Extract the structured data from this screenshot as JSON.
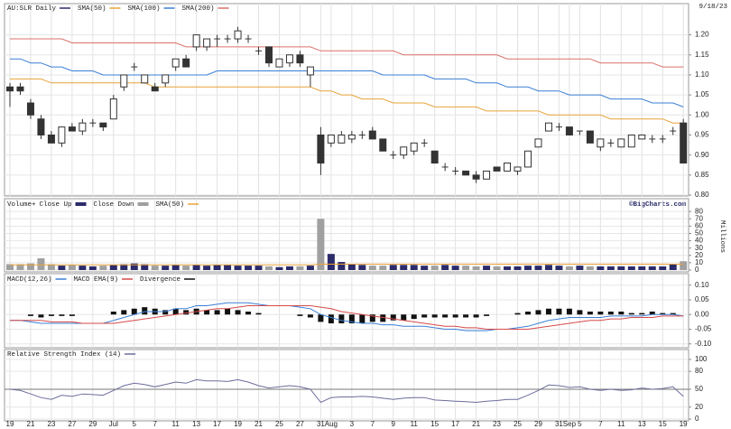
{
  "chart_data": [
    {
      "type": "candlestick",
      "title": "AU:SLR Daily",
      "date": "9/18/23",
      "color": "#2b2b6b",
      "categories": [
        "19",
        null,
        "21",
        null,
        "23",
        null,
        "27",
        null,
        "29",
        null,
        "Jul",
        null,
        "5",
        null,
        "7",
        null,
        "11",
        null,
        "13",
        null,
        "17",
        null,
        "19",
        null,
        "21",
        null,
        "25",
        null,
        "27",
        null,
        "31",
        "Aug",
        null,
        "3",
        null,
        "7",
        null,
        "9",
        null,
        "11",
        null,
        "15",
        null,
        "17",
        null,
        "21",
        null,
        "23",
        null,
        "25",
        null,
        "29",
        null,
        "31",
        "Sep",
        "5",
        null,
        "7",
        null,
        "11",
        null,
        "13",
        null,
        "15",
        null,
        "19"
      ],
      "open": [
        1.07,
        1.07,
        1.03,
        0.99,
        0.95,
        0.93,
        0.97,
        0.96,
        0.98,
        0.98,
        0.99,
        1.07,
        1.12,
        1.08,
        1.07,
        1.08,
        1.12,
        1.14,
        1.17,
        1.17,
        1.19,
        1.19,
        1.19,
        1.19,
        1.16,
        1.17,
        1.12,
        1.13,
        1.15,
        1.1,
        0.95,
        0.93,
        0.93,
        0.94,
        0.95,
        0.96,
        0.94,
        0.9,
        0.9,
        0.91,
        0.93,
        0.91,
        0.87,
        0.86,
        0.86,
        0.85,
        0.84,
        0.87,
        0.86,
        0.86,
        0.87,
        0.92,
        0.96,
        0.97,
        0.97,
        0.96,
        0.96,
        0.92,
        0.93,
        0.92,
        0.92,
        0.94,
        0.94,
        0.94,
        0.96,
        0.98
      ],
      "high": [
        1.08,
        1.08,
        1.04,
        1.0,
        0.96,
        0.97,
        0.98,
        0.99,
        0.99,
        0.98,
        1.05,
        1.1,
        1.13,
        1.1,
        1.08,
        1.1,
        1.14,
        1.15,
        1.2,
        1.19,
        1.2,
        1.2,
        1.22,
        1.2,
        1.17,
        1.17,
        1.14,
        1.15,
        1.16,
        1.12,
        0.97,
        0.95,
        0.96,
        0.96,
        0.96,
        0.97,
        0.94,
        0.91,
        0.92,
        0.93,
        0.94,
        0.91,
        0.88,
        0.87,
        0.86,
        0.86,
        0.86,
        0.87,
        0.88,
        0.87,
        0.91,
        0.94,
        0.98,
        0.98,
        0.97,
        0.96,
        0.96,
        0.94,
        0.94,
        0.94,
        0.95,
        0.95,
        0.95,
        0.95,
        0.97,
        0.99
      ],
      "low": [
        1.02,
        1.05,
        0.99,
        0.94,
        0.93,
        0.92,
        0.96,
        0.95,
        0.97,
        0.96,
        0.99,
        1.06,
        1.11,
        1.08,
        1.06,
        1.07,
        1.11,
        1.12,
        1.16,
        1.16,
        1.17,
        1.18,
        1.18,
        1.18,
        1.15,
        1.12,
        1.12,
        1.12,
        1.12,
        1.07,
        0.85,
        0.92,
        0.93,
        0.93,
        0.94,
        0.94,
        0.91,
        0.89,
        0.89,
        0.9,
        0.92,
        0.88,
        0.86,
        0.85,
        0.85,
        0.83,
        0.84,
        0.86,
        0.86,
        0.85,
        0.87,
        0.92,
        0.96,
        0.96,
        0.95,
        0.95,
        0.93,
        0.91,
        0.92,
        0.92,
        0.92,
        0.94,
        0.93,
        0.93,
        0.95,
        0.88
      ],
      "close": [
        1.06,
        1.06,
        1.0,
        0.95,
        0.93,
        0.97,
        0.96,
        0.98,
        0.98,
        0.97,
        1.04,
        1.1,
        1.12,
        1.1,
        1.06,
        1.1,
        1.14,
        1.12,
        1.2,
        1.19,
        1.19,
        1.19,
        1.21,
        1.19,
        1.16,
        1.13,
        1.14,
        1.15,
        1.13,
        1.12,
        0.88,
        0.95,
        0.95,
        0.95,
        0.95,
        0.94,
        0.91,
        0.9,
        0.92,
        0.93,
        0.93,
        0.88,
        0.87,
        0.86,
        0.85,
        0.84,
        0.86,
        0.86,
        0.88,
        0.87,
        0.91,
        0.94,
        0.98,
        0.97,
        0.95,
        0.96,
        0.93,
        0.94,
        0.93,
        0.94,
        0.95,
        0.95,
        0.94,
        0.94,
        0.96,
        0.88
      ],
      "series": [
        {
          "name": "SMA(50)",
          "color": "#e8a33a",
          "values": [
            1.09,
            1.09,
            1.09,
            1.09,
            1.08,
            1.08,
            1.08,
            1.08,
            1.08,
            1.08,
            1.08,
            1.08,
            1.08,
            1.08,
            1.07,
            1.07,
            1.07,
            1.07,
            1.07,
            1.07,
            1.07,
            1.07,
            1.07,
            1.07,
            1.07,
            1.07,
            1.07,
            1.07,
            1.07,
            1.07,
            1.06,
            1.06,
            1.05,
            1.05,
            1.04,
            1.04,
            1.04,
            1.03,
            1.03,
            1.03,
            1.03,
            1.02,
            1.02,
            1.02,
            1.02,
            1.02,
            1.01,
            1.01,
            1.01,
            1.01,
            1.01,
            1.01,
            1.0,
            1.0,
            1.0,
            1.0,
            1.0,
            1.0,
            0.99,
            0.99,
            0.99,
            0.99,
            0.99,
            0.99,
            0.98,
            0.98
          ]
        },
        {
          "name": "SMA(100)",
          "color": "#3a7fd5",
          "values": [
            1.14,
            1.14,
            1.13,
            1.13,
            1.12,
            1.12,
            1.11,
            1.11,
            1.11,
            1.1,
            1.1,
            1.1,
            1.1,
            1.1,
            1.1,
            1.1,
            1.1,
            1.1,
            1.1,
            1.1,
            1.11,
            1.11,
            1.11,
            1.11,
            1.11,
            1.11,
            1.11,
            1.11,
            1.11,
            1.11,
            1.11,
            1.11,
            1.11,
            1.11,
            1.11,
            1.11,
            1.1,
            1.1,
            1.1,
            1.1,
            1.1,
            1.09,
            1.09,
            1.09,
            1.09,
            1.08,
            1.08,
            1.08,
            1.07,
            1.07,
            1.07,
            1.06,
            1.06,
            1.06,
            1.05,
            1.05,
            1.05,
            1.05,
            1.04,
            1.04,
            1.04,
            1.04,
            1.03,
            1.03,
            1.03,
            1.02
          ]
        },
        {
          "name": "SMA(200)",
          "color": "#d9706a",
          "values": [
            1.19,
            1.19,
            1.19,
            1.19,
            1.19,
            1.19,
            1.18,
            1.18,
            1.18,
            1.18,
            1.18,
            1.18,
            1.18,
            1.18,
            1.18,
            1.18,
            1.18,
            1.17,
            1.17,
            1.17,
            1.17,
            1.17,
            1.17,
            1.17,
            1.17,
            1.17,
            1.17,
            1.17,
            1.17,
            1.17,
            1.16,
            1.16,
            1.16,
            1.16,
            1.16,
            1.16,
            1.16,
            1.16,
            1.15,
            1.15,
            1.15,
            1.15,
            1.15,
            1.15,
            1.15,
            1.15,
            1.15,
            1.15,
            1.14,
            1.14,
            1.14,
            1.14,
            1.14,
            1.14,
            1.14,
            1.14,
            1.14,
            1.13,
            1.13,
            1.13,
            1.13,
            1.13,
            1.13,
            1.12,
            1.12,
            1.12
          ]
        }
      ],
      "ylim": [
        0.8,
        1.26
      ],
      "yticks": [
        {
          "value": 0.8,
          "label": "0.80"
        },
        {
          "value": 0.85,
          "label": "0.85"
        },
        {
          "value": 0.9,
          "label": "0.90"
        },
        {
          "value": 0.95,
          "label": "0.95"
        },
        {
          "value": 1.0,
          "label": "1.00"
        },
        {
          "value": 1.05,
          "label": "1.05"
        },
        {
          "value": 1.1,
          "label": "1.10"
        },
        {
          "value": 1.15,
          "label": "1.15"
        },
        {
          "value": 1.2,
          "label": "1.20"
        }
      ],
      "grid": true
    },
    {
      "type": "volume",
      "title": "Volume+",
      "source": "©BigCharts.com",
      "y_label": "Millions",
      "up": {
        "name": "Close Up",
        "color": "#2b2b6b"
      },
      "down": {
        "name": "Close Down",
        "color": "#a0a0a0"
      },
      "values": [
        8,
        8,
        9,
        16,
        8,
        6,
        7,
        6,
        5,
        6,
        7,
        8,
        9,
        8,
        6,
        6,
        7,
        6,
        7,
        6,
        7,
        7,
        6,
        6,
        6,
        5,
        4,
        5,
        5,
        6,
        70,
        22,
        11,
        8,
        7,
        6,
        6,
        7,
        7,
        7,
        6,
        6,
        7,
        6,
        6,
        5,
        6,
        5,
        5,
        5,
        6,
        6,
        7,
        6,
        5,
        6,
        5,
        5,
        5,
        5,
        5,
        5,
        5,
        5,
        8,
        12
      ],
      "series": [
        {
          "name": "SMA(50)",
          "color": "#e8a33a",
          "values": [
            7,
            7,
            7,
            7,
            7,
            7,
            7,
            7,
            7,
            7,
            7,
            7,
            7,
            7,
            7,
            7,
            7,
            7,
            7,
            7,
            7,
            7,
            7,
            7,
            7,
            7,
            7,
            7,
            7,
            7,
            8,
            8,
            8,
            8,
            8,
            8,
            8,
            8,
            8,
            8,
            8,
            8,
            8,
            8,
            8,
            8,
            8,
            8,
            8,
            8,
            8,
            8,
            8,
            8,
            8,
            8,
            8,
            8,
            8,
            8,
            8,
            8,
            8,
            8,
            8,
            8
          ]
        }
      ],
      "ylim": [
        0,
        95
      ],
      "yticks": [
        0,
        10,
        20,
        30,
        40,
        50,
        60,
        70,
        80
      ],
      "grid": true
    },
    {
      "type": "macd",
      "series": [
        {
          "name": "MACD(12,26)",
          "color": "#3a7fd5",
          "values": [
            -0.02,
            -0.02,
            -0.025,
            -0.03,
            -0.03,
            -0.03,
            -0.03,
            -0.03,
            -0.03,
            -0.03,
            -0.02,
            -0.01,
            0.0,
            0.01,
            0.01,
            0.01,
            0.02,
            0.02,
            0.03,
            0.03,
            0.035,
            0.04,
            0.04,
            0.04,
            0.035,
            0.03,
            0.03,
            0.03,
            0.025,
            0.02,
            0.0,
            -0.01,
            -0.02,
            -0.025,
            -0.03,
            -0.03,
            -0.035,
            -0.035,
            -0.04,
            -0.04,
            -0.04,
            -0.045,
            -0.05,
            -0.05,
            -0.055,
            -0.055,
            -0.055,
            -0.05,
            -0.05,
            -0.045,
            -0.04,
            -0.03,
            -0.02,
            -0.015,
            -0.01,
            -0.01,
            -0.01,
            -0.01,
            -0.005,
            -0.005,
            -0.005,
            -0.005,
            0.0,
            0.0,
            0.0,
            -0.005
          ]
        },
        {
          "name": "MACD EMA(9)",
          "color": "#d64a4a",
          "values": [
            -0.02,
            -0.02,
            -0.02,
            -0.02,
            -0.025,
            -0.025,
            -0.025,
            -0.03,
            -0.03,
            -0.03,
            -0.03,
            -0.025,
            -0.02,
            -0.015,
            -0.01,
            -0.005,
            0.0,
            0.005,
            0.01,
            0.015,
            0.02,
            0.02,
            0.025,
            0.03,
            0.03,
            0.03,
            0.03,
            0.03,
            0.03,
            0.03,
            0.025,
            0.02,
            0.01,
            0.005,
            0.0,
            -0.005,
            -0.01,
            -0.015,
            -0.02,
            -0.025,
            -0.03,
            -0.035,
            -0.04,
            -0.04,
            -0.045,
            -0.045,
            -0.05,
            -0.05,
            -0.05,
            -0.05,
            -0.05,
            -0.045,
            -0.04,
            -0.035,
            -0.03,
            -0.025,
            -0.02,
            -0.02,
            -0.015,
            -0.015,
            -0.01,
            -0.01,
            -0.01,
            -0.005,
            -0.005,
            -0.005
          ]
        },
        {
          "name": "Divergence",
          "color": "#111111",
          "values": [
            0,
            0,
            -0.005,
            -0.01,
            -0.005,
            -0.005,
            -0.005,
            0,
            0,
            0,
            0.01,
            0.015,
            0.02,
            0.025,
            0.02,
            0.015,
            0.02,
            0.015,
            0.02,
            0.015,
            0.015,
            0.02,
            0.015,
            0.01,
            0.005,
            0,
            0,
            0,
            -0.005,
            -0.01,
            -0.025,
            -0.03,
            -0.03,
            -0.03,
            -0.03,
            -0.025,
            -0.025,
            -0.02,
            -0.02,
            -0.015,
            -0.01,
            -0.01,
            -0.01,
            -0.01,
            -0.01,
            -0.01,
            -0.005,
            0,
            0,
            0.005,
            0.01,
            0.015,
            0.02,
            0.02,
            0.02,
            0.015,
            0.01,
            0.01,
            0.01,
            0.01,
            0.005,
            0.005,
            0.01,
            0.005,
            0.005,
            0
          ]
        }
      ],
      "ylim": [
        -0.11,
        0.13
      ],
      "yticks": [
        {
          "value": 0.1,
          "label": "0.10"
        },
        {
          "value": 0.05,
          "label": "0.05"
        },
        {
          "value": 0,
          "label": "0.00"
        },
        {
          "value": -0.05,
          "label": "-0.05"
        },
        {
          "value": -0.1,
          "label": "-0.10"
        }
      ],
      "grid": true
    },
    {
      "type": "line",
      "title": "Relative Strength Index (14)",
      "color": "#6c6c9c",
      "values": [
        50,
        48,
        42,
        36,
        33,
        40,
        38,
        42,
        41,
        40,
        48,
        56,
        60,
        58,
        54,
        58,
        62,
        60,
        66,
        64,
        64,
        63,
        66,
        62,
        56,
        52,
        54,
        56,
        54,
        50,
        28,
        36,
        37,
        37,
        38,
        37,
        35,
        33,
        35,
        36,
        36,
        32,
        31,
        30,
        29,
        28,
        30,
        31,
        33,
        33,
        40,
        48,
        57,
        56,
        53,
        54,
        50,
        48,
        50,
        48,
        49,
        52,
        50,
        51,
        54,
        38
      ],
      "ylim": [
        0,
        115
      ],
      "yticks": [
        0,
        20,
        50,
        80,
        100
      ],
      "grid": true
    }
  ]
}
